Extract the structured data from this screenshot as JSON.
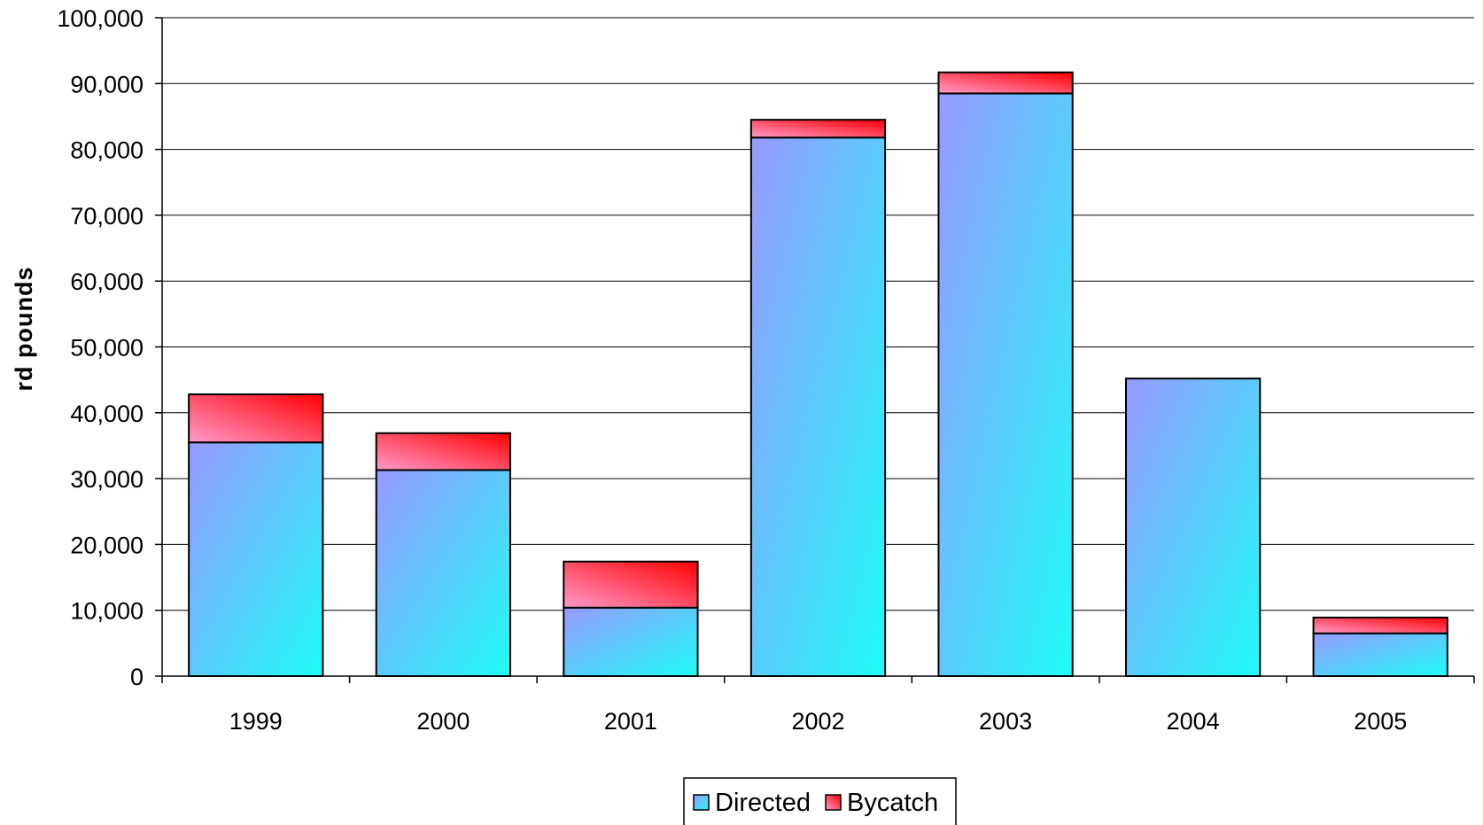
{
  "chart_data": {
    "type": "bar",
    "stacked": true,
    "categories": [
      "1999",
      "2000",
      "2001",
      "2002",
      "2003",
      "2004",
      "2005"
    ],
    "series": [
      {
        "name": "Directed",
        "values": [
          35500,
          31300,
          10400,
          81800,
          88500,
          45200,
          6500
        ]
      },
      {
        "name": "Bycatch",
        "values": [
          7300,
          5600,
          7000,
          2700,
          3200,
          0,
          2400
        ]
      }
    ],
    "title": "",
    "xlabel": "",
    "ylabel": "rd pounds",
    "ylim": [
      0,
      100000
    ],
    "yticks": [
      "0",
      "10,000",
      "20,000",
      "30,000",
      "40,000",
      "50,000",
      "60,000",
      "70,000",
      "80,000",
      "90,000",
      "100,000"
    ],
    "grid": true,
    "legend_position": "bottom-center",
    "colors": {
      "directed_start": "#9999ff",
      "directed_end": "#1efcf8",
      "bycatch_start": "#ff9acb",
      "bycatch_end": "#ff0000"
    }
  }
}
